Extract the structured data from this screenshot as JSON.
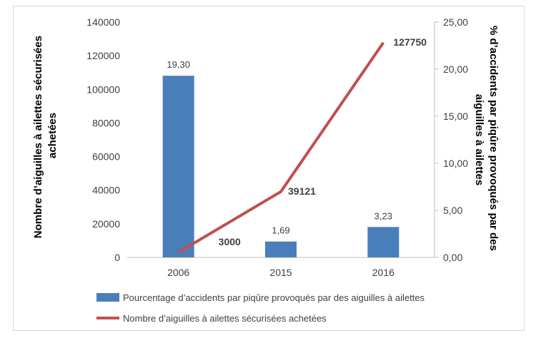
{
  "chart_data": {
    "type": "bar+line",
    "categories": [
      "2006",
      "2015",
      "2016"
    ],
    "series": [
      {
        "name": "Pourcentage d’accidents par piqûre provoqués par des aiguilles à ailettes",
        "type": "bar",
        "axis": "right",
        "values": [
          19.3,
          1.69,
          3.23
        ],
        "labels": [
          "19,30",
          "1,69",
          "3,23"
        ],
        "color": "#4a7ebb"
      },
      {
        "name": "Nombre d’aiguilles à ailettes sécurisées achetées",
        "type": "line",
        "axis": "left",
        "values": [
          3000,
          39121,
          127750
        ],
        "labels": [
          "3000",
          "39121",
          "127750"
        ],
        "color": "#c0504d"
      }
    ],
    "ylabel_left": [
      "Nombre d’aiguilles à ailettes sécurisées",
      "achetées"
    ],
    "ylabel_right": [
      "% d’accidents par piqûre provoqués par des",
      "aiguilles à ailettes"
    ],
    "ylim_left": [
      0,
      140000
    ],
    "ylim_right": [
      0,
      25
    ],
    "yticks_left": [
      "0",
      "20000",
      "40000",
      "60000",
      "80000",
      "100000",
      "120000",
      "140000"
    ],
    "yticks_right": [
      "0,00",
      "5,00",
      "10,00",
      "15,00",
      "20,00",
      "25,00"
    ],
    "grid": false,
    "legend_position": "bottom"
  }
}
